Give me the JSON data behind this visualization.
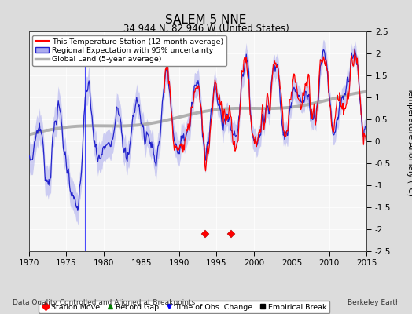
{
  "title": "SALEM 5 NNE",
  "subtitle": "34.944 N, 82.946 W (United States)",
  "ylabel": "Temperature Anomaly (°C)",
  "xlabel_left": "Data Quality Controlled and Aligned at Breakpoints",
  "xlabel_right": "Berkeley Earth",
  "xlim": [
    1970,
    2015
  ],
  "ylim": [
    -2.5,
    2.5
  ],
  "yticks": [
    -2.5,
    -2,
    -1.5,
    -1,
    -0.5,
    0,
    0.5,
    1,
    1.5,
    2,
    2.5
  ],
  "xticks": [
    1970,
    1975,
    1980,
    1985,
    1990,
    1995,
    2000,
    2005,
    2010,
    2015
  ],
  "station_move_years": [
    1993.5,
    1997.0
  ],
  "time_of_obs_years": [
    1977.5
  ],
  "bg_color": "#dcdcdc",
  "plot_bg_color": "#f5f5f5",
  "legend_entries": [
    "This Temperature Station (12-month average)",
    "Regional Expectation with 95% uncertainty",
    "Global Land (5-year average)"
  ],
  "bottom_legend": [
    "Station Move",
    "Record Gap",
    "Time of Obs. Change",
    "Empirical Break"
  ]
}
